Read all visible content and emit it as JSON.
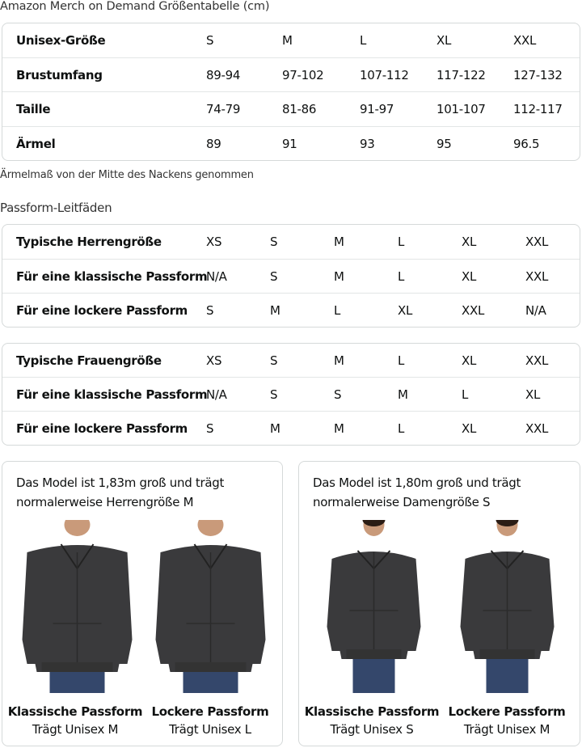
{
  "title": "Amazon Merch on Demand Größentabelle (cm)",
  "size_table": {
    "rows": [
      {
        "label": "Unisex-Größe",
        "values": [
          "S",
          "M",
          "L",
          "XL",
          "XXL"
        ]
      },
      {
        "label": "Brustumfang",
        "values": [
          "89-94",
          "97-102",
          "107-112",
          "117-122",
          "127-132"
        ]
      },
      {
        "label": "Taille",
        "values": [
          "74-79",
          "81-86",
          "91-97",
          "101-107",
          "112-117"
        ]
      },
      {
        "label": "Ärmel",
        "values": [
          "89",
          "91",
          "93",
          "95",
          "96.5"
        ]
      }
    ]
  },
  "note": "Ärmelmaß von der Mitte des Nackens genommen",
  "fit_title": "Passform-Leitfäden",
  "men_table": {
    "rows": [
      {
        "label": "Typische Herrengröße",
        "values": [
          "XS",
          "S",
          "M",
          "L",
          "XL",
          "XXL"
        ]
      },
      {
        "label": "Für eine klassische Passform",
        "values": [
          "N/A",
          "S",
          "M",
          "L",
          "XL",
          "XXL"
        ]
      },
      {
        "label": "Für eine lockere Passform",
        "values": [
          "S",
          "M",
          "L",
          "XL",
          "XXL",
          "N/A"
        ]
      }
    ]
  },
  "women_table": {
    "rows": [
      {
        "label": "Typische Frauengröße",
        "values": [
          "XS",
          "S",
          "M",
          "L",
          "XL",
          "XXL"
        ]
      },
      {
        "label": "Für eine klassische Passform",
        "values": [
          "N/A",
          "S",
          "S",
          "M",
          "L",
          "XL"
        ]
      },
      {
        "label": "Für eine lockere Passform",
        "values": [
          "S",
          "M",
          "M",
          "L",
          "XL",
          "XXL"
        ]
      }
    ]
  },
  "cards": [
    {
      "text_line1": "Das Model ist 1,83m groß und trägt",
      "text_line2": "normalerweise Herrengröße M",
      "models": [
        {
          "fit": "Klassische Passform",
          "size": "Trägt Unisex M"
        },
        {
          "fit": "Lockere Passform",
          "size": "Trägt Unisex L"
        }
      ]
    },
    {
      "text_line1": "Das Model ist 1,80m groß und trägt",
      "text_line2": "normalerweise Damengröße S",
      "models": [
        {
          "fit": "Klassische Passform",
          "size": "Trägt Unisex S"
        },
        {
          "fit": "Lockere Passform",
          "size": "Trägt Unisex M"
        }
      ]
    }
  ],
  "colors": {
    "hoodie": "#3a3a3c",
    "jeans": "#34476b",
    "border": "#d5d9d9"
  }
}
